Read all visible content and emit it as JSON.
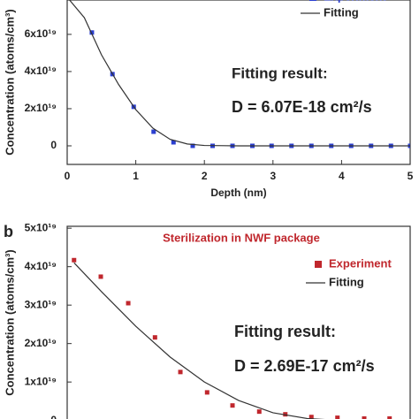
{
  "chart_data": [
    {
      "type": "scatter",
      "xlabel": "Depth (nm)",
      "ylabel": "Concentration (atoms/cm³)",
      "annotations": [
        "Fitting result:",
        "D = 6.07E-18 cm²/s"
      ],
      "xlim": [
        0,
        5
      ],
      "xticks": [
        0,
        1,
        2,
        3,
        4,
        5
      ],
      "ylim": [
        -1e+19,
        7.85e+19
      ],
      "yticks": [
        0,
        {
          "value": 2e+19,
          "label": "2x10¹⁹"
        },
        {
          "value": 4e+19,
          "label": "4x10¹⁹"
        },
        {
          "value": 6e+19,
          "label": "6x10¹⁹"
        }
      ],
      "series": [
        {
          "name": "Experiment",
          "color": "#2b3fd0",
          "style": "marker",
          "x": [
            0.36,
            0.66,
            0.97,
            1.26,
            1.55,
            1.83,
            2.12,
            2.41,
            2.7,
            2.98,
            3.27,
            3.56,
            3.85,
            4.14,
            4.43,
            4.72,
            5.0
          ],
          "values": [
            6.1e+19,
            3.86e+19,
            2.1e+19,
            7.6e+18,
            1.9e+18,
            0,
            0,
            0,
            0,
            0,
            0,
            0,
            0,
            0,
            0,
            0,
            0
          ]
        },
        {
          "name": "Fitting",
          "color": "#333333",
          "style": "line",
          "x": [
            0,
            0.25,
            0.5,
            0.75,
            1,
            1.25,
            1.5,
            1.75,
            2,
            2.5,
            3,
            3.5,
            4,
            4.5,
            5
          ],
          "values": [
            8e+19,
            6.9e+19,
            4.9e+19,
            3.3e+19,
            1.95e+19,
            9.5e+18,
            3.5e+18,
            1e+18,
            2e+17,
            0,
            0,
            0,
            0,
            0,
            0
          ]
        }
      ]
    },
    {
      "type": "scatter",
      "panel_label": "b",
      "title": "Sterilization in NWF package",
      "ylabel": "Concentration (atoms/cm³)",
      "annotations": [
        "Fitting result:",
        "D = 2.69E-17 cm²/s"
      ],
      "xlim": [
        0,
        5
      ],
      "ylim": [
        -1e+18,
        5.05e+19
      ],
      "yticks": [
        0,
        {
          "value": 1e+19,
          "label": "1x10¹⁹"
        },
        {
          "value": 2e+19,
          "label": "2x10¹⁹"
        },
        {
          "value": 3e+19,
          "label": "3x10¹⁹"
        },
        {
          "value": 4e+19,
          "label": "4x10¹⁹"
        },
        {
          "value": 5e+19,
          "label": "5x10¹⁹"
        }
      ],
      "series": [
        {
          "name": "Experiment",
          "color": "#c0272d",
          "style": "marker",
          "x": [
            0.1,
            0.49,
            0.89,
            1.28,
            1.65,
            2.04,
            2.41,
            2.8,
            3.18,
            3.56,
            3.94,
            4.33,
            4.7
          ],
          "values": [
            4.17e+19,
            3.74e+19,
            3.05e+19,
            2.16e+19,
            1.26e+19,
            7.3e+18,
            3.9e+18,
            2.3e+18,
            1.6e+18,
            9e+17,
            7e+17,
            5e+17,
            5e+17
          ]
        },
        {
          "name": "Fitting",
          "color": "#333333",
          "style": "line",
          "x": [
            0.1,
            0.5,
            1.0,
            1.5,
            2.0,
            2.5,
            3.0,
            3.5,
            4.0,
            5.0
          ],
          "values": [
            4.1e+19,
            3.35e+19,
            2.45e+19,
            1.65e+19,
            1e+19,
            5.2e+18,
            2e+18,
            5e+17,
            0,
            0
          ]
        }
      ]
    }
  ]
}
